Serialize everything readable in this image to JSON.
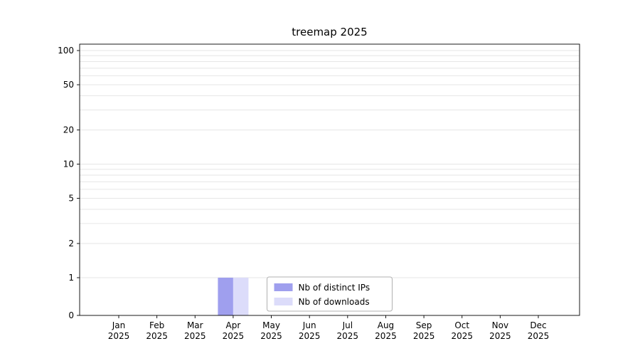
{
  "chart_data": {
    "type": "bar",
    "title": "treemap 2025",
    "categories": [
      "Jan",
      "Feb",
      "Mar",
      "Apr",
      "May",
      "Jun",
      "Jul",
      "Aug",
      "Sep",
      "Oct",
      "Nov",
      "Dec"
    ],
    "year": "2025",
    "series": [
      {
        "name": "Nb of distinct IPs",
        "color": "#9f9fee",
        "values": [
          0,
          0,
          0,
          1,
          0,
          0,
          0,
          0,
          0,
          0,
          0,
          0
        ]
      },
      {
        "name": "Nb of downloads",
        "color": "#dcdcfa",
        "values": [
          0,
          0,
          0,
          1,
          0,
          0,
          0,
          0,
          0,
          0,
          0,
          0
        ]
      }
    ],
    "yscale": "symlog",
    "ylim": [
      0,
      113
    ],
    "yticks": [
      0,
      1,
      2,
      5,
      10,
      20,
      50,
      100
    ],
    "grid": true,
    "legend_position": "lower center",
    "colors": {
      "background": "#ffffff",
      "axis": "#000000",
      "grid": "#e6e6e6",
      "legend_border": "#b0b0b0"
    }
  }
}
